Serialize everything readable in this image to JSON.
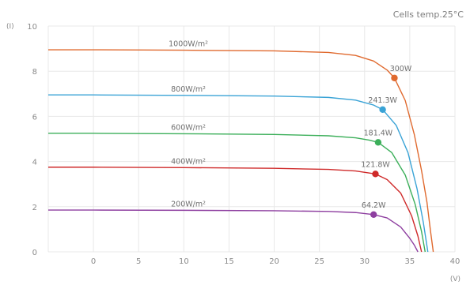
{
  "chart_data": {
    "type": "line",
    "title": "",
    "annotation": "Cells temp.25°C",
    "ylabel": "(I)",
    "xlabel": "(V)",
    "xlim": [
      -5,
      40
    ],
    "ylim": [
      0,
      10
    ],
    "x_ticks": [
      "0",
      "5",
      "10",
      "15",
      "20",
      "25",
      "30",
      "35",
      "40"
    ],
    "y_ticks": [
      "0",
      "2",
      "4",
      "6",
      "8",
      "10"
    ],
    "grid": true,
    "series": [
      {
        "name": "1000W/m²",
        "color": "#e06a2f",
        "x": [
          -5,
          0,
          10,
          20,
          26,
          29,
          31,
          32.5,
          33.3,
          34.5,
          35.5,
          36.3,
          36.9,
          37.3,
          37.6
        ],
        "y": [
          8.95,
          8.95,
          8.93,
          8.9,
          8.83,
          8.7,
          8.45,
          8.05,
          7.7,
          6.7,
          5.2,
          3.6,
          2.2,
          0.9,
          0
        ],
        "mpp": {
          "label": "300W",
          "x": 33.3,
          "y": 7.7
        }
      },
      {
        "name": "800W/m²",
        "color": "#3aa3d6",
        "x": [
          -5,
          0,
          10,
          20,
          26,
          29,
          31,
          32,
          33.5,
          34.8,
          35.8,
          36.5,
          37
        ],
        "y": [
          6.95,
          6.95,
          6.93,
          6.9,
          6.84,
          6.72,
          6.5,
          6.3,
          5.6,
          4.4,
          2.8,
          1.3,
          0
        ],
        "mpp": {
          "label": "241.3W",
          "x": 32,
          "y": 6.3
        }
      },
      {
        "name": "600W/m²",
        "color": "#3caf5a",
        "x": [
          -5,
          0,
          10,
          20,
          26,
          29,
          30.5,
          31.5,
          33,
          34.5,
          35.6,
          36.3,
          36.7
        ],
        "y": [
          5.25,
          5.25,
          5.23,
          5.2,
          5.14,
          5.05,
          4.95,
          4.85,
          4.4,
          3.4,
          2.1,
          0.9,
          0
        ],
        "mpp": {
          "label": "181.4W",
          "x": 31.5,
          "y": 4.85
        }
      },
      {
        "name": "400W/m²",
        "color": "#cf2a2a",
        "x": [
          -5,
          0,
          10,
          20,
          26,
          29,
          31.2,
          32.5,
          34,
          35.2,
          35.9,
          36.3
        ],
        "y": [
          3.75,
          3.75,
          3.73,
          3.7,
          3.65,
          3.58,
          3.45,
          3.2,
          2.6,
          1.6,
          0.7,
          0
        ],
        "mpp": {
          "label": "121.8W",
          "x": 31.2,
          "y": 3.45
        }
      },
      {
        "name": "200W/m²",
        "color": "#8e3fa0",
        "x": [
          -5,
          0,
          10,
          20,
          26,
          29,
          31,
          32.5,
          34,
          35,
          35.5,
          35.9
        ],
        "y": [
          1.85,
          1.85,
          1.84,
          1.82,
          1.79,
          1.74,
          1.65,
          1.5,
          1.1,
          0.6,
          0.3,
          0
        ],
        "mpp": {
          "label": "64.2W",
          "x": 31,
          "y": 1.65
        }
      }
    ]
  }
}
